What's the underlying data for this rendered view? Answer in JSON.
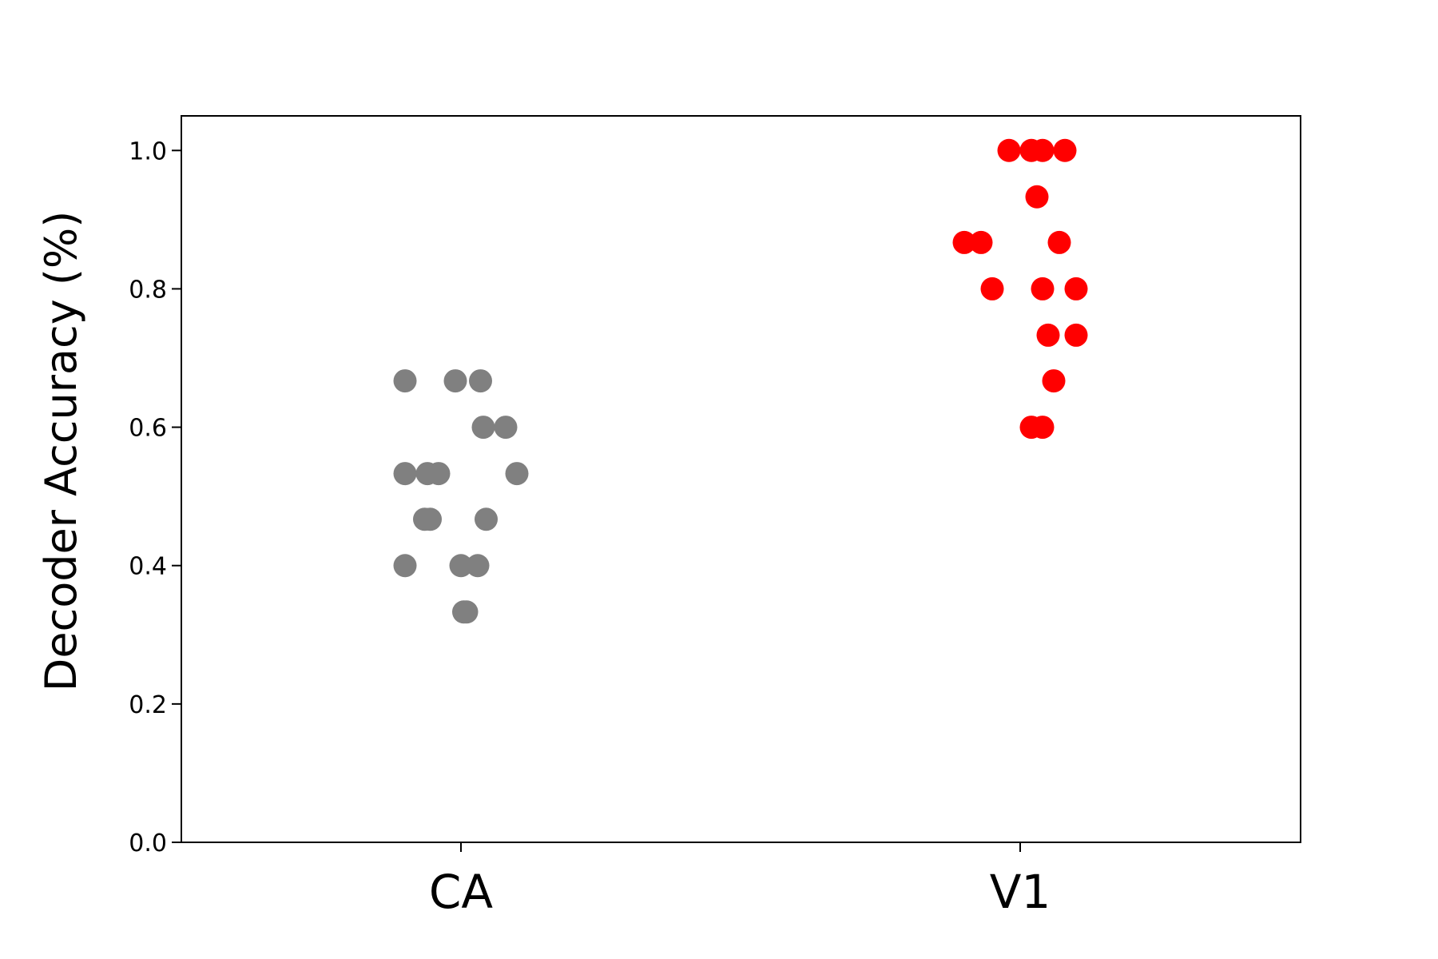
{
  "chart_data": {
    "type": "scatter",
    "ylabel": "Decoder Accuracy (%)",
    "xlabel": "",
    "categories": [
      "CA",
      "V1"
    ],
    "ylim": [
      0,
      1.05
    ],
    "yticks": [
      0.0,
      0.2,
      0.4,
      0.6,
      0.8,
      1.0
    ],
    "ytick_labels": [
      "0.0",
      "0.2",
      "0.4",
      "0.6",
      "0.8",
      "1.0"
    ],
    "grid": false,
    "legend": "none",
    "series": [
      {
        "category": "CA",
        "color": "#808080",
        "points": [
          {
            "x": -0.1,
            "y": 0.667
          },
          {
            "x": -0.01,
            "y": 0.667
          },
          {
            "x": 0.035,
            "y": 0.667
          },
          {
            "x": 0.04,
            "y": 0.6
          },
          {
            "x": 0.08,
            "y": 0.6
          },
          {
            "x": -0.1,
            "y": 0.533
          },
          {
            "x": -0.06,
            "y": 0.533
          },
          {
            "x": -0.04,
            "y": 0.533
          },
          {
            "x": 0.1,
            "y": 0.533
          },
          {
            "x": -0.065,
            "y": 0.467
          },
          {
            "x": -0.055,
            "y": 0.467
          },
          {
            "x": 0.045,
            "y": 0.467
          },
          {
            "x": -0.1,
            "y": 0.4
          },
          {
            "x": 0.0,
            "y": 0.4
          },
          {
            "x": 0.03,
            "y": 0.4
          },
          {
            "x": 0.005,
            "y": 0.333
          },
          {
            "x": 0.01,
            "y": 0.333
          }
        ]
      },
      {
        "category": "V1",
        "color": "#ff0000",
        "points": [
          {
            "x": -0.02,
            "y": 1.0
          },
          {
            "x": 0.02,
            "y": 1.0
          },
          {
            "x": 0.04,
            "y": 1.0
          },
          {
            "x": 0.08,
            "y": 1.0
          },
          {
            "x": 0.03,
            "y": 0.933
          },
          {
            "x": -0.1,
            "y": 0.867
          },
          {
            "x": -0.07,
            "y": 0.867
          },
          {
            "x": 0.07,
            "y": 0.867
          },
          {
            "x": -0.05,
            "y": 0.8
          },
          {
            "x": 0.04,
            "y": 0.8
          },
          {
            "x": 0.1,
            "y": 0.8
          },
          {
            "x": 0.05,
            "y": 0.733
          },
          {
            "x": 0.1,
            "y": 0.733
          },
          {
            "x": 0.06,
            "y": 0.667
          },
          {
            "x": 0.02,
            "y": 0.6
          },
          {
            "x": 0.04,
            "y": 0.6
          }
        ]
      }
    ]
  }
}
